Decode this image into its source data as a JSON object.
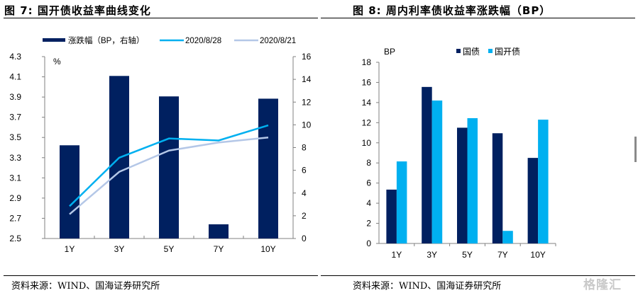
{
  "figures": {
    "left_title": "图 7:  国开债收益率曲线变化",
    "right_title": "图 8:  周内利率债收益率涨跌幅（BP）",
    "left_source": "资料来源：WIND、国海证券研究所",
    "right_source": "资料来源：WIND、国海证券研究所"
  },
  "watermark": "格隆汇",
  "chart_data": [
    {
      "type": "bar",
      "title": "国开债收益率曲线变化",
      "categories": [
        "1Y",
        "3Y",
        "5Y",
        "7Y",
        "10Y"
      ],
      "left_axis": {
        "label": "%",
        "ylim": [
          2.5,
          4.3
        ],
        "ticks": [
          "2.5",
          "2.7",
          "2.9",
          "3.1",
          "3.3",
          "3.5",
          "3.7",
          "3.9",
          "4.1",
          "4.3"
        ]
      },
      "right_axis": {
        "ylim": [
          0,
          16
        ],
        "ticks": [
          "0",
          "2",
          "4",
          "6",
          "8",
          "10",
          "12",
          "14",
          "16"
        ]
      },
      "legend_position": "top",
      "grid": false,
      "series": [
        {
          "name": "涨跌幅（BP，右轴）",
          "kind": "bar",
          "axis": "right",
          "color": "#002060",
          "values": [
            8.2,
            14.3,
            12.5,
            1.25,
            12.3
          ]
        },
        {
          "name": "2020/8/28",
          "kind": "line",
          "axis": "left",
          "color": "#00B0F0",
          "values": [
            2.82,
            3.3,
            3.49,
            3.47,
            3.62
          ]
        },
        {
          "name": "2020/8/21",
          "kind": "line",
          "axis": "left",
          "color": "#B4C7E7",
          "values": [
            2.74,
            3.16,
            3.37,
            3.45,
            3.5
          ]
        }
      ]
    },
    {
      "type": "bar",
      "title": "周内利率债收益率涨跌幅（BP）",
      "categories": [
        "1Y",
        "3Y",
        "5Y",
        "7Y",
        "10Y"
      ],
      "ylabel": "BP",
      "ylim": [
        0,
        18
      ],
      "yticks": [
        "0",
        "2",
        "4",
        "6",
        "8",
        "10",
        "12",
        "14",
        "16",
        "18"
      ],
      "legend_position": "top",
      "grid": false,
      "series": [
        {
          "name": "国债",
          "color": "#002060",
          "values": [
            5.35,
            15.55,
            11.5,
            10.95,
            8.5
          ]
        },
        {
          "name": "国开债",
          "color": "#00B0F0",
          "values": [
            8.15,
            14.2,
            12.45,
            1.25,
            12.3
          ]
        }
      ]
    }
  ]
}
